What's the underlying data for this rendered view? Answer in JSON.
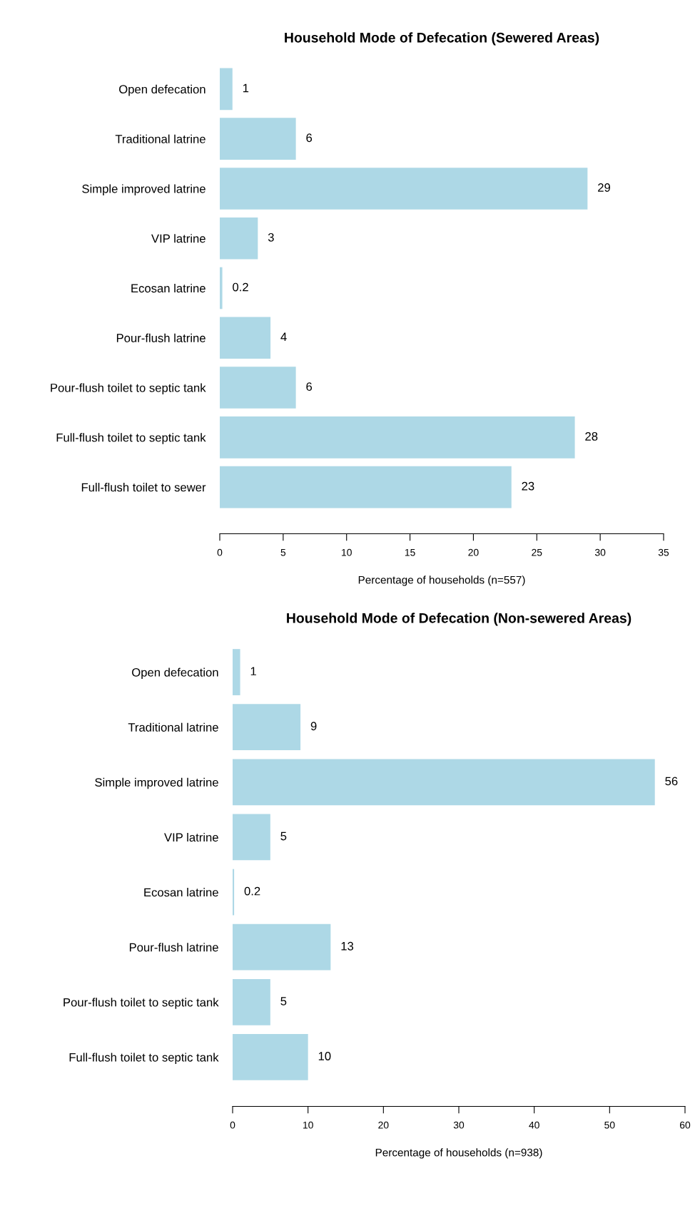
{
  "chart_data": [
    {
      "type": "bar",
      "orientation": "horizontal",
      "title": "Household Mode of Defecation (Sewered Areas)",
      "xlabel": "Percentage of households (n=557)",
      "categories": [
        "Open defecation",
        "Traditional latrine",
        "Simple improved latrine",
        "VIP latrine",
        "Ecosan latrine",
        "Pour-flush latrine",
        "Pour-flush toilet to septic tank",
        "Full-flush toilet to septic tank",
        "Full-flush toilet to sewer"
      ],
      "values": [
        1,
        6,
        29,
        3,
        0.2,
        4,
        6,
        28,
        23
      ],
      "color": "#add8e6",
      "xlim": [
        0,
        35
      ],
      "xticks": [
        0,
        5,
        10,
        15,
        20,
        25,
        30,
        35
      ],
      "data_labels": true,
      "grid": false,
      "legend": false
    },
    {
      "type": "bar",
      "orientation": "horizontal",
      "title": "Household Mode of Defecation (Non-sewered Areas)",
      "xlabel": "Percentage of households (n=938)",
      "categories": [
        "Open defecation",
        "Traditional latrine",
        "Simple improved latrine",
        "VIP latrine",
        "Ecosan latrine",
        "Pour-flush latrine",
        "Pour-flush toilet to septic tank",
        "Full-flush toilet to septic tank"
      ],
      "values": [
        1,
        9,
        56,
        5,
        0.2,
        13,
        5,
        10
      ],
      "color": "#add8e6",
      "xlim": [
        0,
        60
      ],
      "xticks": [
        0,
        10,
        20,
        30,
        40,
        50,
        60
      ],
      "data_labels": true,
      "grid": false,
      "legend": false
    }
  ]
}
